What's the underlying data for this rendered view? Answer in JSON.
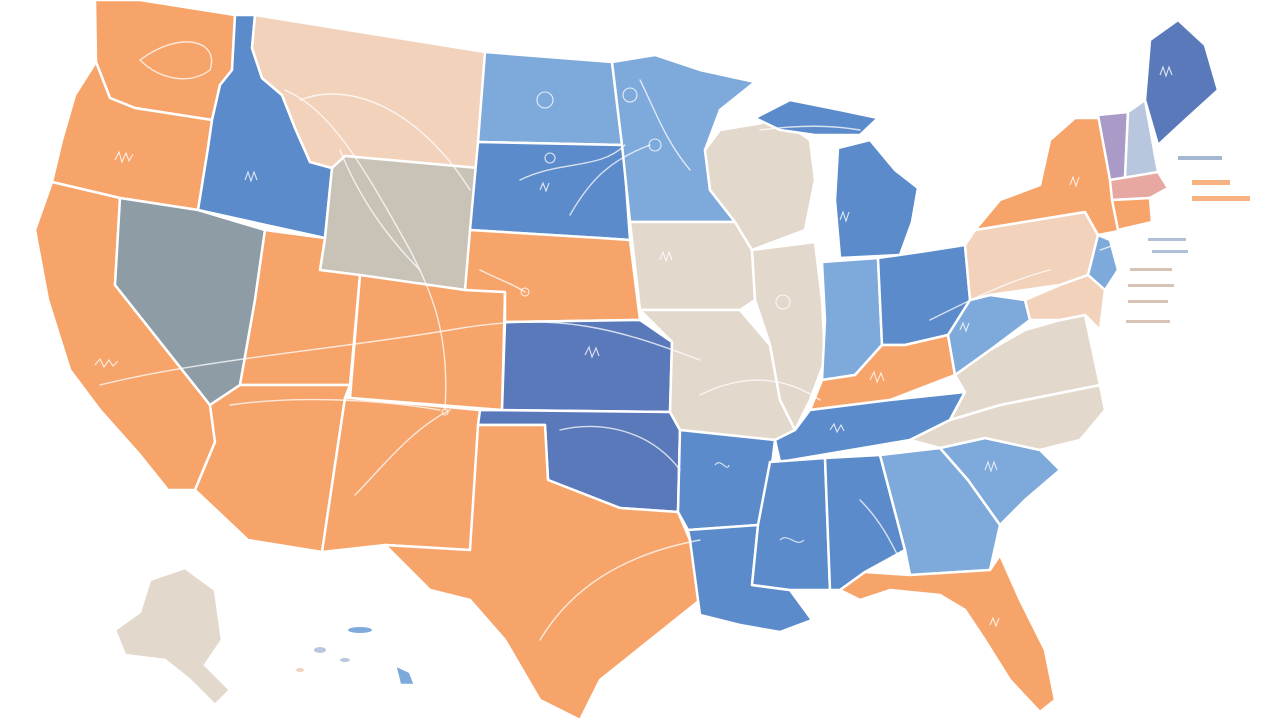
{
  "map": {
    "title": "",
    "palette": {
      "orange": "#F7A46B",
      "peach": "#F3D2BC",
      "light_blue": "#7EA9DB",
      "mid_blue": "#5B8BCB",
      "dark_blue": "#5A79BA",
      "slate": "#8E9CA6",
      "taupe": "#C9C3B7",
      "beige": "#E3D8CC",
      "lavender": "#A99AC8",
      "pale_blue": "#B8C6DE",
      "pink": "#E6A8A1"
    },
    "states": [
      {
        "name": "washington",
        "color": "orange"
      },
      {
        "name": "oregon",
        "color": "orange"
      },
      {
        "name": "california",
        "color": "orange"
      },
      {
        "name": "idaho",
        "color": "mid_blue"
      },
      {
        "name": "nevada",
        "color": "slate"
      },
      {
        "name": "montana",
        "color": "peach"
      },
      {
        "name": "wyoming",
        "color": "taupe"
      },
      {
        "name": "utah",
        "color": "orange"
      },
      {
        "name": "colorado",
        "color": "orange"
      },
      {
        "name": "arizona",
        "color": "orange"
      },
      {
        "name": "new-mexico",
        "color": "orange"
      },
      {
        "name": "north-dakota",
        "color": "light_blue"
      },
      {
        "name": "south-dakota",
        "color": "mid_blue"
      },
      {
        "name": "nebraska",
        "color": "orange"
      },
      {
        "name": "kansas",
        "color": "dark_blue"
      },
      {
        "name": "oklahoma",
        "color": "dark_blue"
      },
      {
        "name": "texas",
        "color": "orange"
      },
      {
        "name": "minnesota",
        "color": "light_blue"
      },
      {
        "name": "iowa",
        "color": "beige"
      },
      {
        "name": "missouri",
        "color": "beige"
      },
      {
        "name": "arkansas",
        "color": "mid_blue"
      },
      {
        "name": "louisiana",
        "color": "mid_blue"
      },
      {
        "name": "wisconsin",
        "color": "beige"
      },
      {
        "name": "illinois",
        "color": "beige"
      },
      {
        "name": "michigan",
        "color": "mid_blue"
      },
      {
        "name": "indiana",
        "color": "light_blue"
      },
      {
        "name": "ohio",
        "color": "mid_blue"
      },
      {
        "name": "kentucky",
        "color": "orange"
      },
      {
        "name": "tennessee",
        "color": "mid_blue"
      },
      {
        "name": "mississippi",
        "color": "mid_blue"
      },
      {
        "name": "alabama",
        "color": "mid_blue"
      },
      {
        "name": "georgia",
        "color": "light_blue"
      },
      {
        "name": "florida",
        "color": "orange"
      },
      {
        "name": "south-carolina",
        "color": "light_blue"
      },
      {
        "name": "north-carolina",
        "color": "beige"
      },
      {
        "name": "virginia",
        "color": "beige"
      },
      {
        "name": "west-virginia",
        "color": "light_blue"
      },
      {
        "name": "pennsylvania",
        "color": "peach"
      },
      {
        "name": "new-york",
        "color": "orange"
      },
      {
        "name": "new-jersey",
        "color": "light_blue"
      },
      {
        "name": "maryland-delaware",
        "color": "peach"
      },
      {
        "name": "vermont",
        "color": "lavender"
      },
      {
        "name": "new-hampshire",
        "color": "pale_blue"
      },
      {
        "name": "maine",
        "color": "dark_blue"
      },
      {
        "name": "massachusetts",
        "color": "pink"
      },
      {
        "name": "connecticut-rhode-island",
        "color": "orange"
      },
      {
        "name": "alaska",
        "color": "beige"
      },
      {
        "name": "hawaii",
        "color": "light_blue"
      }
    ]
  }
}
